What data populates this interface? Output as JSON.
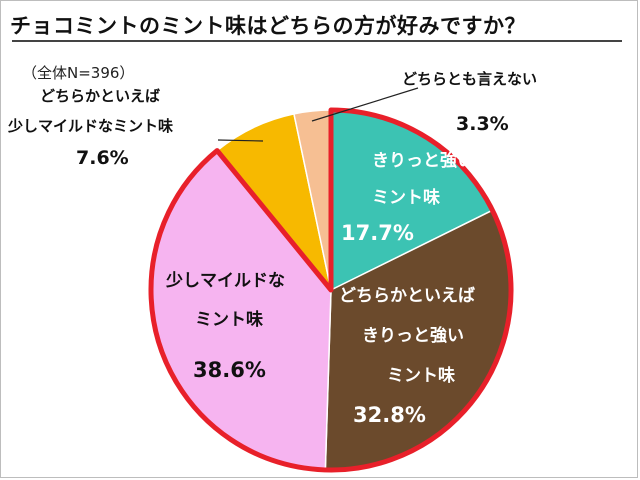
{
  "chart_data": {
    "type": "pie",
    "title": "チョコミントのミント味はどちらの方が好みですか？",
    "subtitle": "（全体N=396）",
    "slices": [
      {
        "label_lines": [
          "きりっと強い",
          "ミント味"
        ],
        "value_text": "17.7%",
        "value": 17.7,
        "color": "#3cc3b3",
        "highlight": true
      },
      {
        "label_lines": [
          "どちらかといえば",
          "きりっと強い",
          "ミント味"
        ],
        "value_text": "32.8%",
        "value": 32.8,
        "color": "#6b4a2c",
        "highlight": true
      },
      {
        "label_lines": [
          "少しマイルドな",
          "ミント味"
        ],
        "value_text": "38.6%",
        "value": 38.6,
        "color": "#f6b4f0",
        "highlight": true
      },
      {
        "label_lines": [
          "どちらかといえば",
          "少しマイルドなミント味"
        ],
        "value_text": "7.6%",
        "value": 7.6,
        "color": "#f7b900",
        "highlight": false
      },
      {
        "label_lines": [
          "どちらとも言えない"
        ],
        "value_text": "3.3%",
        "value": 3.3,
        "color": "#f6bf93",
        "highlight": false
      }
    ],
    "highlight_color": "#e8202a"
  }
}
